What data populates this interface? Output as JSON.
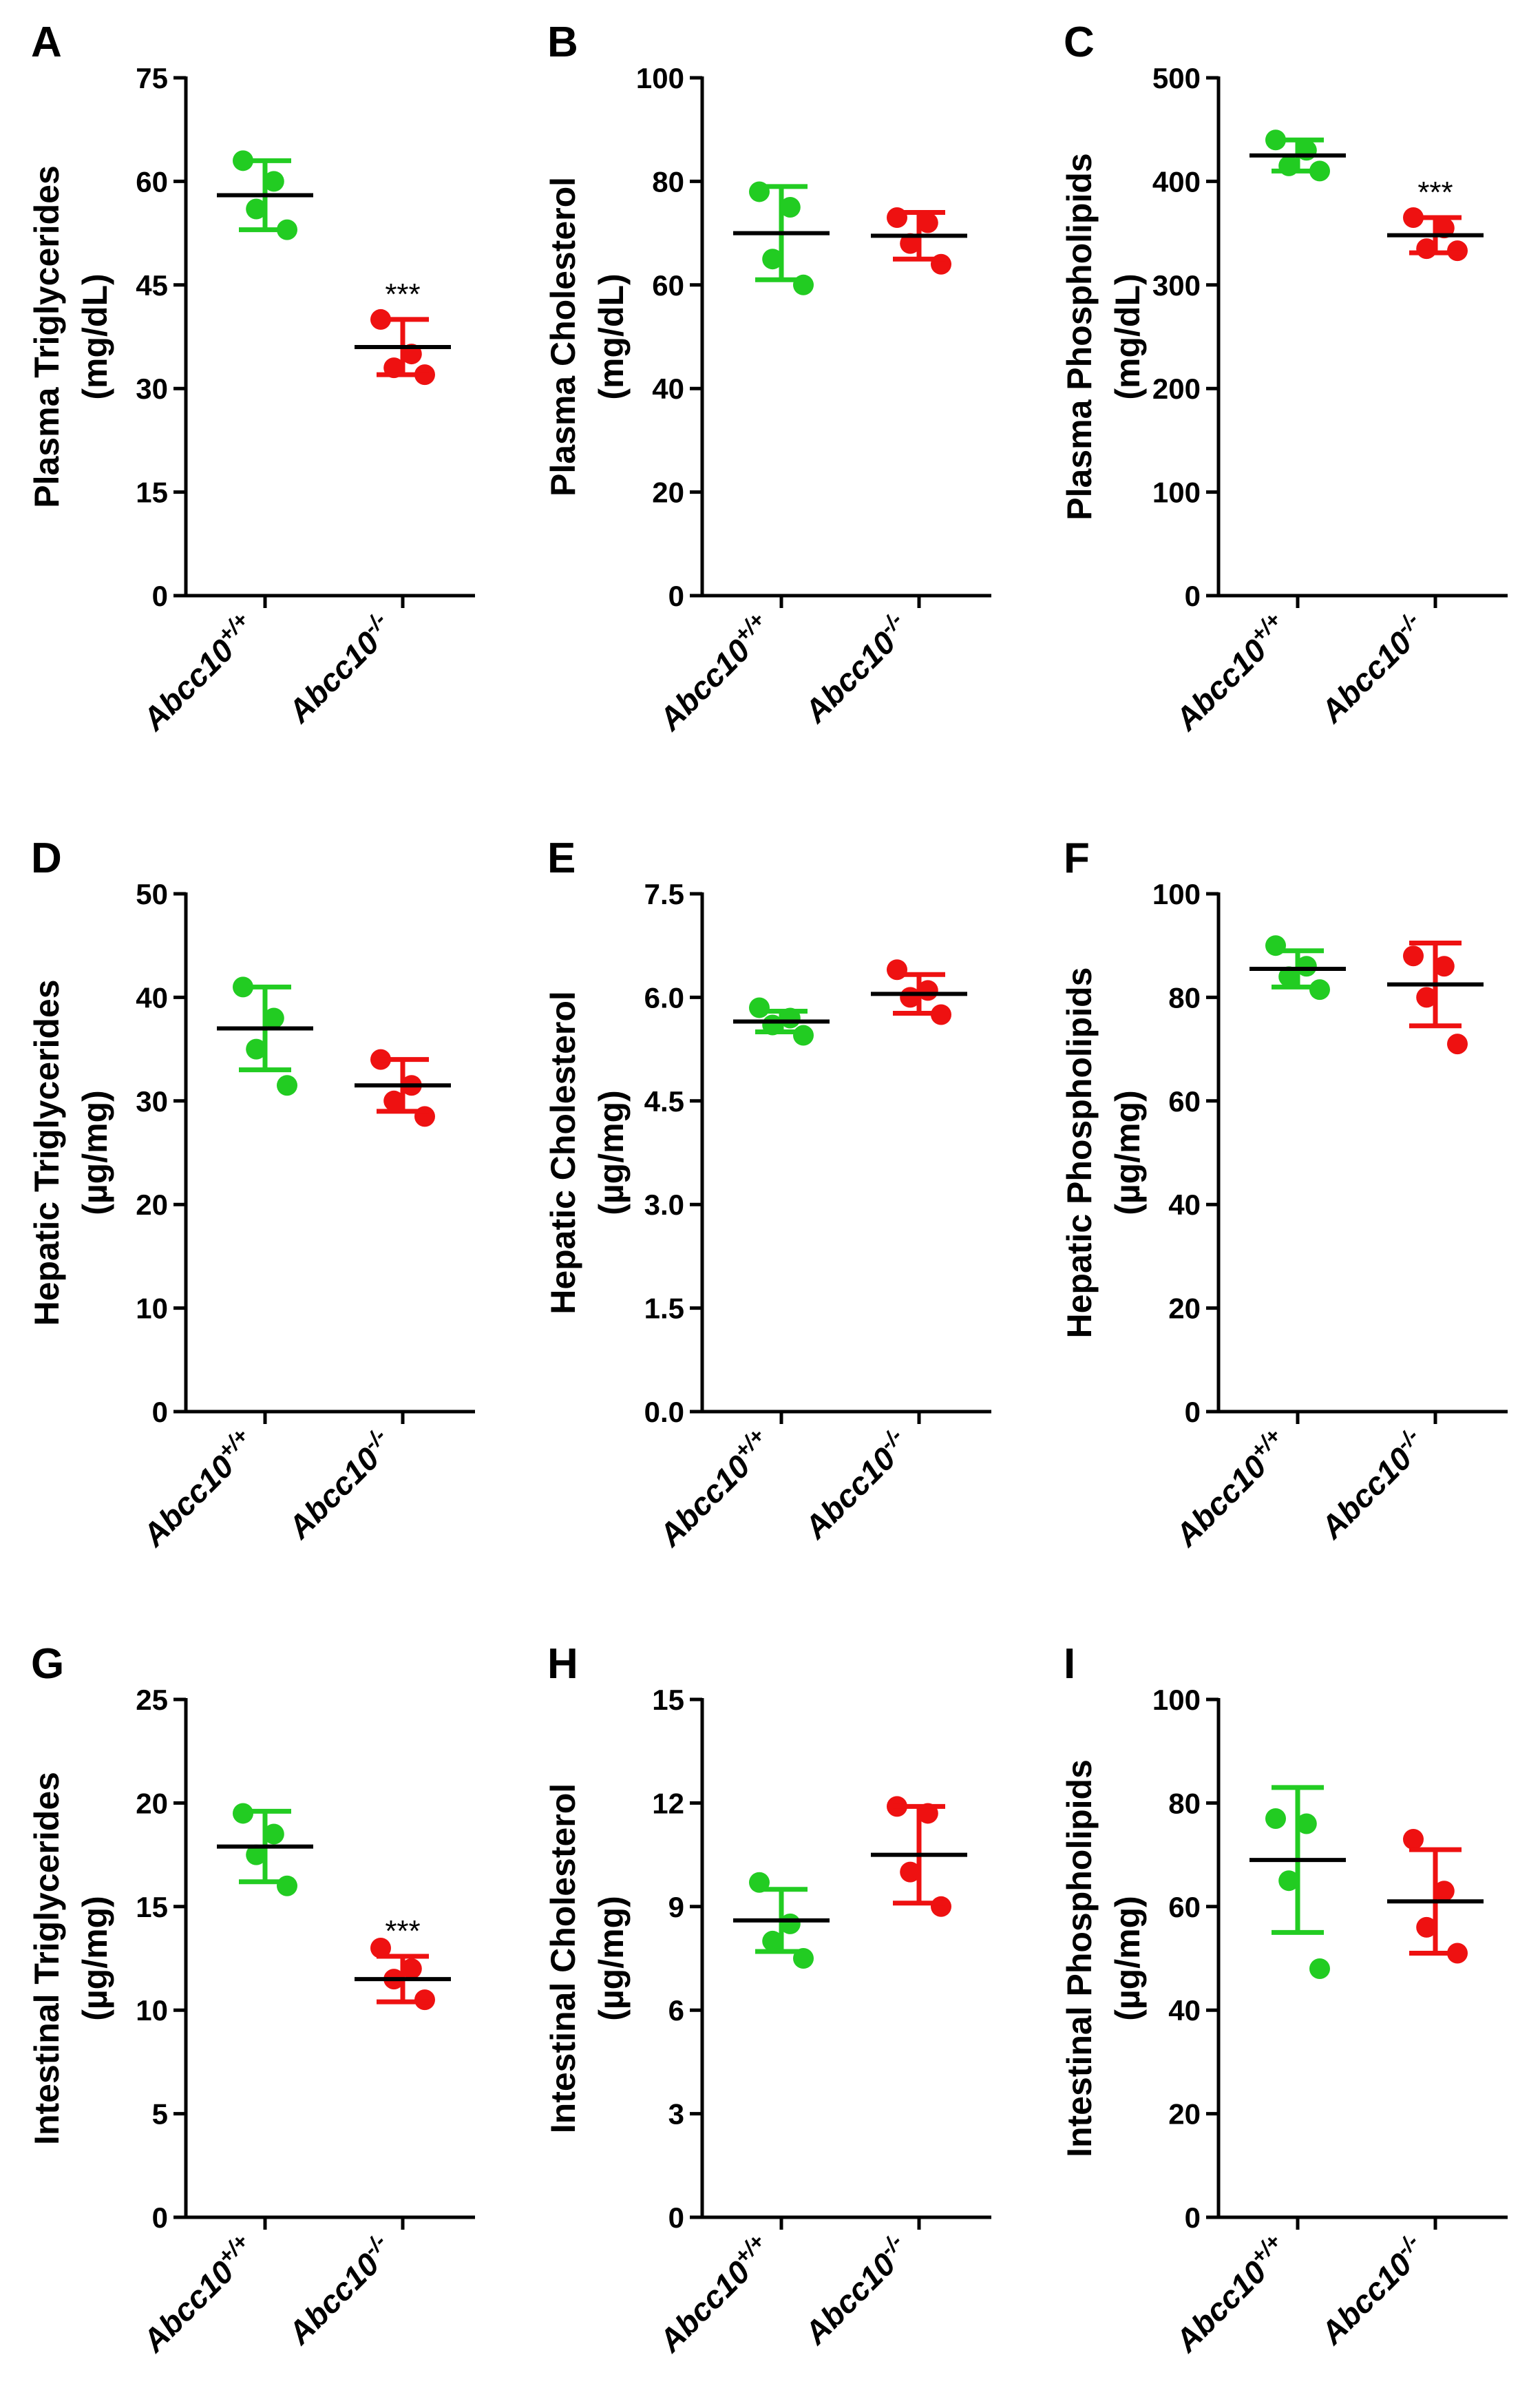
{
  "colors": {
    "wt": "#22cc22",
    "ko": "#ee1111",
    "axis": "#000000"
  },
  "chart_data": [
    {
      "type": "scatter",
      "panel_letter": "A",
      "ylabel_line1": "Plasma Triglycerides",
      "ylabel_line2": "(mg/dL)",
      "ylim": [
        0,
        75
      ],
      "yticks": [
        "0",
        "15",
        "30",
        "45",
        "60",
        "75"
      ],
      "categories": [
        {
          "base": "Abcc10",
          "sup": "+/+"
        },
        {
          "base": "Abcc10",
          "sup": "-/-"
        }
      ],
      "series": [
        {
          "values": [
            63,
            60,
            56,
            53
          ],
          "mean": 58,
          "sd": 5
        },
        {
          "values": [
            40,
            35,
            33,
            32
          ],
          "mean": 36,
          "sd": 4
        }
      ],
      "annotations": [
        {
          "category": 1,
          "text": "***"
        }
      ]
    },
    {
      "type": "scatter",
      "panel_letter": "B",
      "ylabel_line1": "Plasma Cholesterol",
      "ylabel_line2": "(mg/dL)",
      "ylim": [
        0,
        100
      ],
      "yticks": [
        "0",
        "20",
        "40",
        "60",
        "80",
        "100"
      ],
      "categories": [
        {
          "base": "Abcc10",
          "sup": "+/+"
        },
        {
          "base": "Abcc10",
          "sup": "-/-"
        }
      ],
      "series": [
        {
          "values": [
            78,
            75,
            65,
            60
          ],
          "mean": 70,
          "sd": 9
        },
        {
          "values": [
            73,
            72,
            68,
            64
          ],
          "mean": 69.5,
          "sd": 4.5
        }
      ],
      "annotations": []
    },
    {
      "type": "scatter",
      "panel_letter": "C",
      "ylabel_line1": "Plasma Phospholipids",
      "ylabel_line2": "(mg/dL)",
      "ylim": [
        0,
        500
      ],
      "yticks": [
        "0",
        "100",
        "200",
        "300",
        "400",
        "500"
      ],
      "categories": [
        {
          "base": "Abcc10",
          "sup": "+/+"
        },
        {
          "base": "Abcc10",
          "sup": "-/-"
        }
      ],
      "series": [
        {
          "values": [
            440,
            430,
            415,
            410
          ],
          "mean": 425,
          "sd": 15
        },
        {
          "values": [
            365,
            355,
            335,
            333
          ],
          "mean": 348,
          "sd": 17
        }
      ],
      "annotations": [
        {
          "category": 1,
          "text": "***"
        }
      ]
    },
    {
      "type": "scatter",
      "panel_letter": "D",
      "ylabel_line1": "Hepatic Triglycerides",
      "ylabel_line2": "(µg/mg)",
      "ylim": [
        0,
        50
      ],
      "yticks": [
        "0",
        "10",
        "20",
        "30",
        "40",
        "50"
      ],
      "categories": [
        {
          "base": "Abcc10",
          "sup": "+/+"
        },
        {
          "base": "Abcc10",
          "sup": "-/-"
        }
      ],
      "series": [
        {
          "values": [
            41,
            38,
            35,
            31.5
          ],
          "mean": 37,
          "sd": 4
        },
        {
          "values": [
            34,
            31.5,
            30,
            28.5
          ],
          "mean": 31.5,
          "sd": 2.5
        }
      ],
      "annotations": []
    },
    {
      "type": "scatter",
      "panel_letter": "E",
      "ylabel_line1": "Hepatic Cholesterol",
      "ylabel_line2": "(µg/mg)",
      "ylim": [
        0,
        7.5
      ],
      "yticks": [
        "0.0",
        "1.5",
        "3.0",
        "4.5",
        "6.0",
        "7.5"
      ],
      "categories": [
        {
          "base": "Abcc10",
          "sup": "+/+"
        },
        {
          "base": "Abcc10",
          "sup": "-/-"
        }
      ],
      "series": [
        {
          "values": [
            5.85,
            5.7,
            5.6,
            5.45
          ],
          "mean": 5.65,
          "sd": 0.15
        },
        {
          "values": [
            6.4,
            6.1,
            6.0,
            5.75
          ],
          "mean": 6.05,
          "sd": 0.28
        }
      ],
      "annotations": []
    },
    {
      "type": "scatter",
      "panel_letter": "F",
      "ylabel_line1": "Hepatic Phospholipids",
      "ylabel_line2": "(µg/mg)",
      "ylim": [
        0,
        100
      ],
      "yticks": [
        "0",
        "20",
        "40",
        "60",
        "80",
        "100"
      ],
      "categories": [
        {
          "base": "Abcc10",
          "sup": "+/+"
        },
        {
          "base": "Abcc10",
          "sup": "-/-"
        }
      ],
      "series": [
        {
          "values": [
            90,
            86,
            84,
            81.5
          ],
          "mean": 85.5,
          "sd": 3.5
        },
        {
          "values": [
            88,
            86,
            80,
            71
          ],
          "mean": 82.5,
          "sd": 8
        }
      ],
      "annotations": []
    },
    {
      "type": "scatter",
      "panel_letter": "G",
      "ylabel_line1": "Intestinal Triglycerides",
      "ylabel_line2": "(µg/mg)",
      "ylim": [
        0,
        25
      ],
      "yticks": [
        "0",
        "5",
        "10",
        "15",
        "20",
        "25"
      ],
      "categories": [
        {
          "base": "Abcc10",
          "sup": "+/+"
        },
        {
          "base": "Abcc10",
          "sup": "-/-"
        }
      ],
      "series": [
        {
          "values": [
            19.5,
            18.5,
            17.5,
            16
          ],
          "mean": 17.9,
          "sd": 1.7
        },
        {
          "values": [
            13,
            12,
            11.5,
            10.5
          ],
          "mean": 11.5,
          "sd": 1.1
        }
      ],
      "annotations": [
        {
          "category": 1,
          "text": "***"
        }
      ]
    },
    {
      "type": "scatter",
      "panel_letter": "H",
      "ylabel_line1": "Intestinal Cholesterol",
      "ylabel_line2": "(µg/mg)",
      "ylim": [
        0,
        15
      ],
      "yticks": [
        "0",
        "3",
        "6",
        "9",
        "12",
        "15"
      ],
      "categories": [
        {
          "base": "Abcc10",
          "sup": "+/+"
        },
        {
          "base": "Abcc10",
          "sup": "-/-"
        }
      ],
      "series": [
        {
          "values": [
            9.7,
            8.5,
            8.0,
            7.5
          ],
          "mean": 8.6,
          "sd": 0.9
        },
        {
          "values": [
            11.9,
            11.7,
            10.0,
            9.0
          ],
          "mean": 10.5,
          "sd": 1.4
        }
      ],
      "annotations": []
    },
    {
      "type": "scatter",
      "panel_letter": "I",
      "ylabel_line1": "Intestinal Phospholipids",
      "ylabel_line2": "(µg/mg)",
      "ylim": [
        0,
        100
      ],
      "yticks": [
        "0",
        "20",
        "40",
        "60",
        "80",
        "100"
      ],
      "categories": [
        {
          "base": "Abcc10",
          "sup": "+/+"
        },
        {
          "base": "Abcc10",
          "sup": "-/-"
        }
      ],
      "series": [
        {
          "values": [
            77,
            76,
            65,
            48
          ],
          "mean": 69,
          "sd": 14
        },
        {
          "values": [
            73,
            63,
            56,
            51
          ],
          "mean": 61,
          "sd": 10
        }
      ],
      "annotations": []
    }
  ]
}
